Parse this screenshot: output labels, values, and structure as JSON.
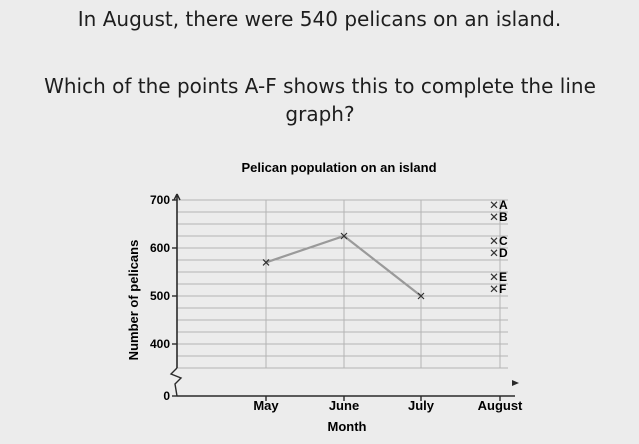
{
  "question": {
    "line1": "In August, there were 540 pelicans on an island.",
    "line2": "Which of the points A-F shows this to complete the line graph?"
  },
  "chart_data": {
    "type": "line",
    "title": "Pelican population on an island",
    "xlabel": "Month",
    "ylabel": "Number of pelicans",
    "categories": [
      "May",
      "June",
      "July",
      "August"
    ],
    "series": [
      {
        "values": [
          570,
          625,
          500,
          null
        ]
      }
    ],
    "ylim": [
      350,
      700
    ],
    "yticks": [
      0,
      400,
      500,
      600,
      700
    ],
    "axis_break": true,
    "grid": true,
    "candidate_points": [
      {
        "label": "A",
        "x": "August",
        "y": 690
      },
      {
        "label": "B",
        "x": "August",
        "y": 665
      },
      {
        "label": "C",
        "x": "August",
        "y": 615
      },
      {
        "label": "D",
        "x": "August",
        "y": 590
      },
      {
        "label": "E",
        "x": "August",
        "y": 540
      },
      {
        "label": "F",
        "x": "August",
        "y": 515
      }
    ],
    "colors": {
      "line": "#9a9a9a",
      "grid": "#b4b4b4",
      "axis": "#2a2a2a"
    }
  }
}
